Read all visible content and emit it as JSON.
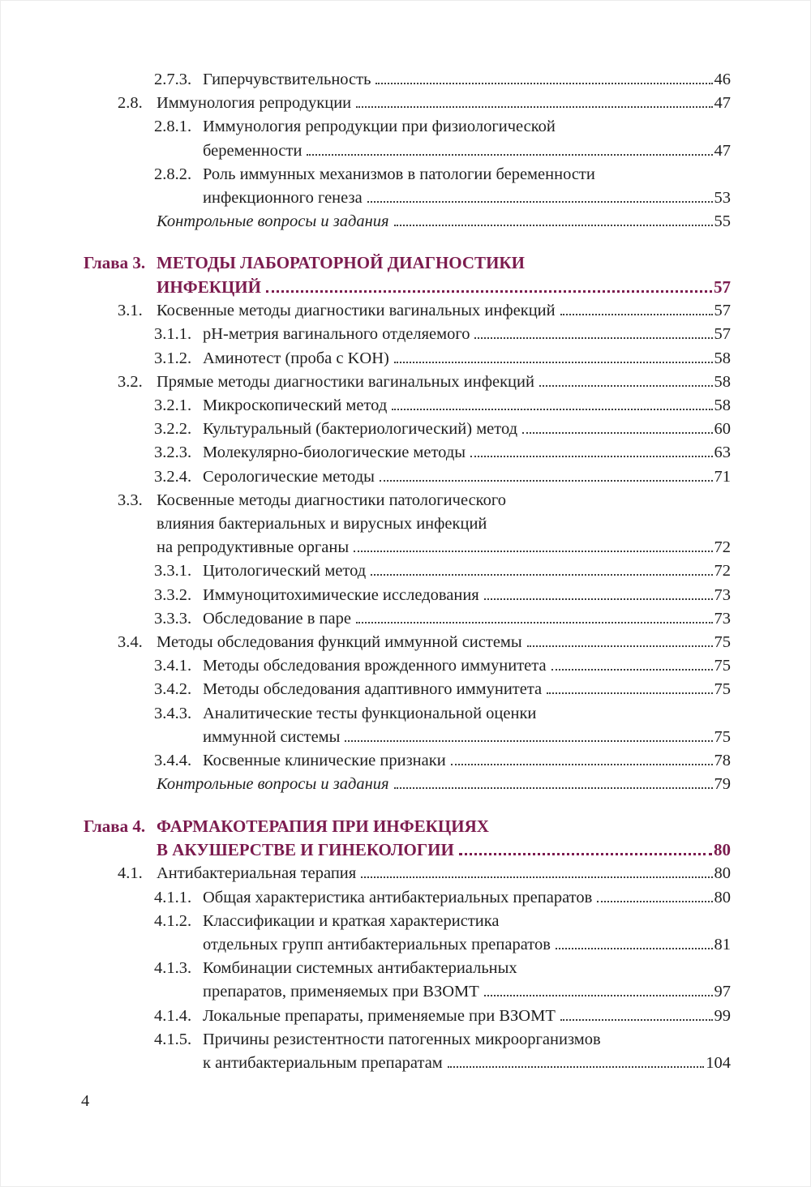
{
  "page": {
    "footer_page_number": "4"
  },
  "accent_color": "#7b1b4e",
  "toc": {
    "rows": [
      {
        "kind": "sub",
        "num": "2.7.3.",
        "text": "Гиперчувствительность",
        "page": "46"
      },
      {
        "kind": "sec",
        "num": "2.8.",
        "text": "Иммунология репродукции",
        "page": "47"
      },
      {
        "kind": "sub",
        "num": "2.8.1.",
        "text": "Иммунология репродукции при физиологической",
        "page": null
      },
      {
        "kind": "subcont",
        "num": null,
        "text": "беременности",
        "page": "47"
      },
      {
        "kind": "sub",
        "num": "2.8.2.",
        "text": "Роль иммунных механизмов в патологии беременности",
        "page": null
      },
      {
        "kind": "subcont",
        "num": null,
        "text": "инфекционного генеза",
        "page": "53"
      },
      {
        "kind": "quest",
        "num": null,
        "text": "Контрольные вопросы и задания",
        "page": "55"
      },
      {
        "kind": "chapter",
        "num": "Глава 3.",
        "text": "МЕТОДЫ ЛАБОРАТОРНОЙ ДИАГНОСТИКИ",
        "page": null
      },
      {
        "kind": "chaptercont",
        "num": null,
        "text": "ИНФЕКЦИЙ",
        "page": "57"
      },
      {
        "kind": "sec",
        "num": "3.1.",
        "text": "Косвенные методы диагностики вагинальных инфекций",
        "page": "57"
      },
      {
        "kind": "sub",
        "num": "3.1.1.",
        "text": "pH-метрия вагинального отделяемого",
        "page": "57"
      },
      {
        "kind": "sub",
        "num": "3.1.2.",
        "text": "Аминотест (проба с KOH)",
        "page": "58"
      },
      {
        "kind": "sec",
        "num": "3.2.",
        "text": "Прямые методы диагностики вагинальных инфекций",
        "page": "58"
      },
      {
        "kind": "sub",
        "num": "3.2.1.",
        "text": "Микроскопический метод",
        "page": "58"
      },
      {
        "kind": "sub",
        "num": "3.2.2.",
        "text": "Культуральный (бактериологический) метод",
        "page": "60"
      },
      {
        "kind": "sub",
        "num": "3.2.3.",
        "text": "Молекулярно-биологические методы",
        "page": "63"
      },
      {
        "kind": "sub",
        "num": "3.2.4.",
        "text": "Серологические методы",
        "page": "71"
      },
      {
        "kind": "sec",
        "num": "3.3.",
        "text": "Косвенные методы диагностики патологического",
        "page": null
      },
      {
        "kind": "seccont",
        "num": null,
        "text": "влияния бактериальных и вирусных инфекций",
        "page": null
      },
      {
        "kind": "seccont",
        "num": null,
        "text": "на репродуктивные органы",
        "page": "72"
      },
      {
        "kind": "sub",
        "num": "3.3.1.",
        "text": "Цитологический метод",
        "page": "72"
      },
      {
        "kind": "sub",
        "num": "3.3.2.",
        "text": "Иммуноцитохимические исследования",
        "page": "73"
      },
      {
        "kind": "sub",
        "num": "3.3.3.",
        "text": "Обследование в паре",
        "page": "73"
      },
      {
        "kind": "sec",
        "num": "3.4.",
        "text": "Методы обследования функций иммунной системы",
        "page": "75"
      },
      {
        "kind": "sub",
        "num": "3.4.1.",
        "text": "Методы обследования врожденного иммунитета",
        "page": "75"
      },
      {
        "kind": "sub",
        "num": "3.4.2.",
        "text": "Методы обследования адаптивного иммунитета",
        "page": "75"
      },
      {
        "kind": "sub",
        "num": "3.4.3.",
        "text": "Аналитические тесты функциональной оценки",
        "page": null
      },
      {
        "kind": "subcont",
        "num": null,
        "text": "иммунной системы",
        "page": "75"
      },
      {
        "kind": "sub",
        "num": "3.4.4.",
        "text": "Косвенные клинические признаки",
        "page": "78"
      },
      {
        "kind": "quest",
        "num": null,
        "text": "Контрольные вопросы и задания",
        "page": "79"
      },
      {
        "kind": "chapter",
        "num": "Глава 4.",
        "text": "ФАРМАКОТЕРАПИЯ ПРИ ИНФЕКЦИЯХ",
        "page": null
      },
      {
        "kind": "chaptercont",
        "num": null,
        "text": "В АКУШЕРСТВЕ И ГИНЕКОЛОГИИ",
        "page": "80"
      },
      {
        "kind": "sec",
        "num": "4.1.",
        "text": "Антибактериальная терапия",
        "page": "80"
      },
      {
        "kind": "sub",
        "num": "4.1.1.",
        "text": "Общая характеристика антибактериальных препаратов",
        "page": "80"
      },
      {
        "kind": "sub",
        "num": "4.1.2.",
        "text": "Классификации и краткая характеристика",
        "page": null
      },
      {
        "kind": "subcont",
        "num": null,
        "text": "отдельных групп антибактериальных препаратов",
        "page": "81"
      },
      {
        "kind": "sub",
        "num": "4.1.3.",
        "text": "Комбинации системных антибактериальных",
        "page": null
      },
      {
        "kind": "subcont",
        "num": null,
        "text": "препаратов, применяемых при ВЗОМТ",
        "page": "97"
      },
      {
        "kind": "sub",
        "num": "4.1.4.",
        "text": "Локальные препараты, применяемые при ВЗОМТ",
        "page": "99"
      },
      {
        "kind": "sub",
        "num": "4.1.5.",
        "text": "Причины резистентности патогенных микроорганизмов",
        "page": null
      },
      {
        "kind": "subcont",
        "num": null,
        "text": "к антибактериальным препаратам",
        "page": "104"
      }
    ]
  }
}
